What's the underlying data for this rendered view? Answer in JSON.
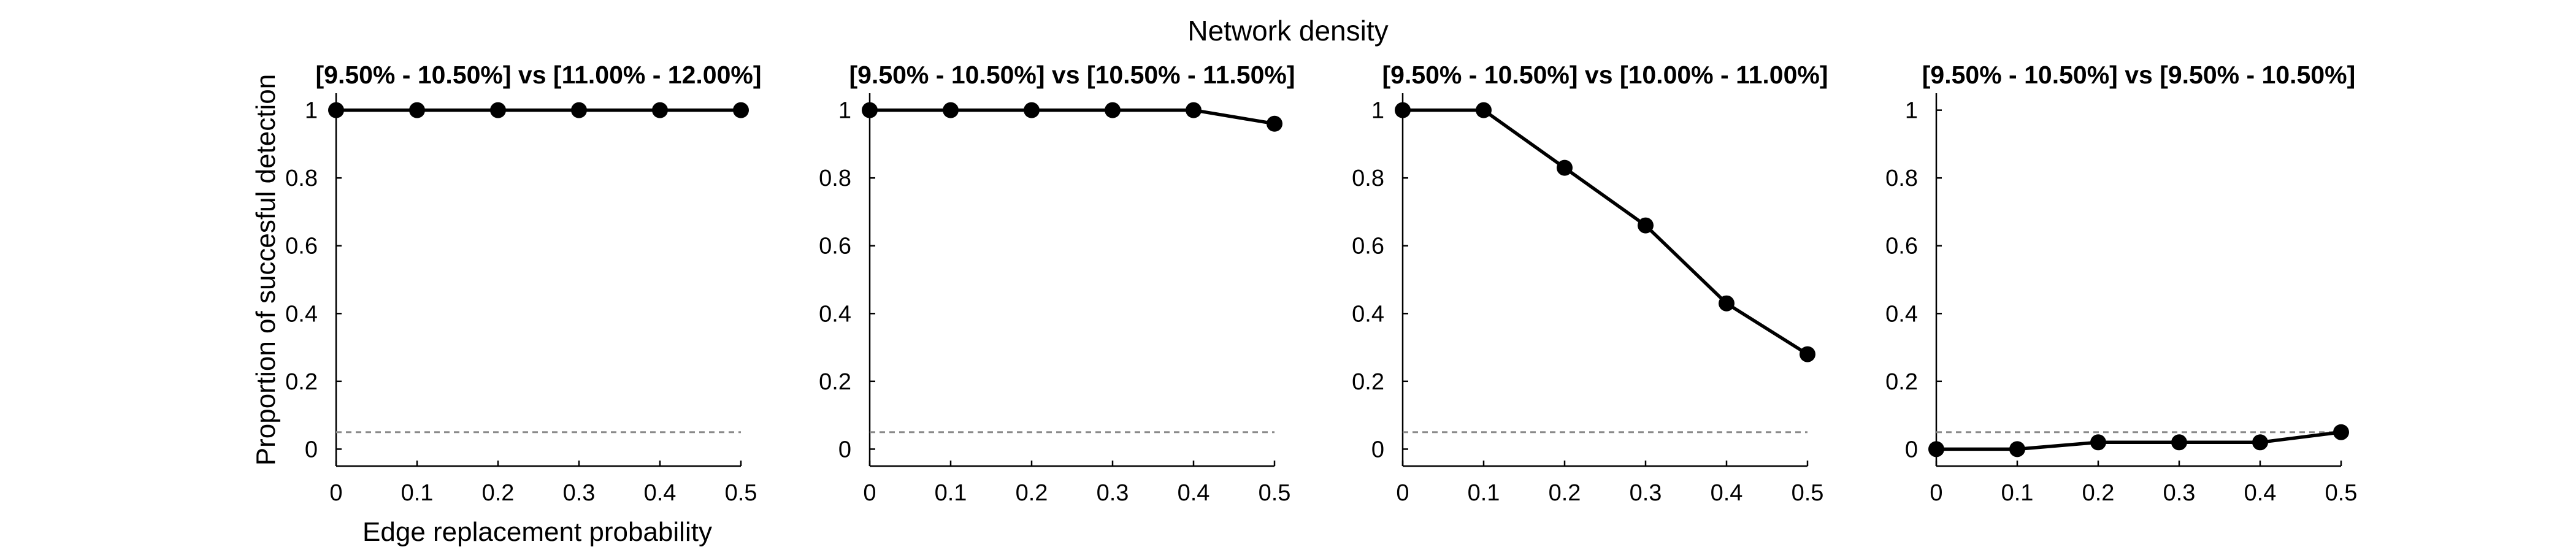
{
  "figure": {
    "suptitle": "Network density",
    "ylabel": "Proportion of succesful detection",
    "xlabel": "Edge replacement probability"
  },
  "chart_data": [
    {
      "type": "line",
      "title": "[9.50% - 10.50%] vs [11.00% - 12.00%]",
      "x": [
        0,
        0.1,
        0.2,
        0.3,
        0.4,
        0.5
      ],
      "series": [
        {
          "values": [
            1,
            1,
            1,
            1,
            1,
            1
          ]
        }
      ],
      "reference_line": 0.05,
      "xlim": [
        0,
        0.5
      ],
      "ylim": [
        -0.05,
        1.05
      ],
      "xticks": [
        "0",
        "0.1",
        "0.2",
        "0.3",
        "0.4",
        "0.5"
      ],
      "yticks": [
        "0",
        "0.2",
        "0.4",
        "0.6",
        "0.8",
        "1"
      ],
      "grid": false
    },
    {
      "type": "line",
      "title": "[9.50% - 10.50%] vs [10.50% - 11.50%]",
      "x": [
        0,
        0.1,
        0.2,
        0.3,
        0.4,
        0.5
      ],
      "series": [
        {
          "values": [
            1,
            1,
            1,
            1,
            1,
            0.96
          ]
        }
      ],
      "reference_line": 0.05,
      "xlim": [
        0,
        0.5
      ],
      "ylim": [
        -0.05,
        1.05
      ],
      "xticks": [
        "0",
        "0.1",
        "0.2",
        "0.3",
        "0.4",
        "0.5"
      ],
      "yticks": [
        "0",
        "0.2",
        "0.4",
        "0.6",
        "0.8",
        "1"
      ],
      "grid": false
    },
    {
      "type": "line",
      "title": "[9.50% - 10.50%] vs [10.00% - 11.00%]",
      "x": [
        0,
        0.1,
        0.2,
        0.3,
        0.4,
        0.5
      ],
      "series": [
        {
          "values": [
            1,
            1,
            0.83,
            0.66,
            0.43,
            0.28
          ]
        }
      ],
      "reference_line": 0.05,
      "xlim": [
        0,
        0.5
      ],
      "ylim": [
        -0.05,
        1.05
      ],
      "xticks": [
        "0",
        "0.1",
        "0.2",
        "0.3",
        "0.4",
        "0.5"
      ],
      "yticks": [
        "0",
        "0.2",
        "0.4",
        "0.6",
        "0.8",
        "1"
      ],
      "grid": false
    },
    {
      "type": "line",
      "title": "[9.50% - 10.50%] vs [9.50% - 10.50%]",
      "x": [
        0,
        0.1,
        0.2,
        0.3,
        0.4,
        0.5
      ],
      "series": [
        {
          "values": [
            0,
            0,
            0.02,
            0.02,
            0.02,
            0.05
          ]
        }
      ],
      "reference_line": 0.05,
      "xlim": [
        0,
        0.5
      ],
      "ylim": [
        -0.05,
        1.05
      ],
      "xticks": [
        "0",
        "0.1",
        "0.2",
        "0.3",
        "0.4",
        "0.5"
      ],
      "yticks": [
        "0",
        "0.2",
        "0.4",
        "0.6",
        "0.8",
        "1"
      ],
      "grid": false
    }
  ]
}
